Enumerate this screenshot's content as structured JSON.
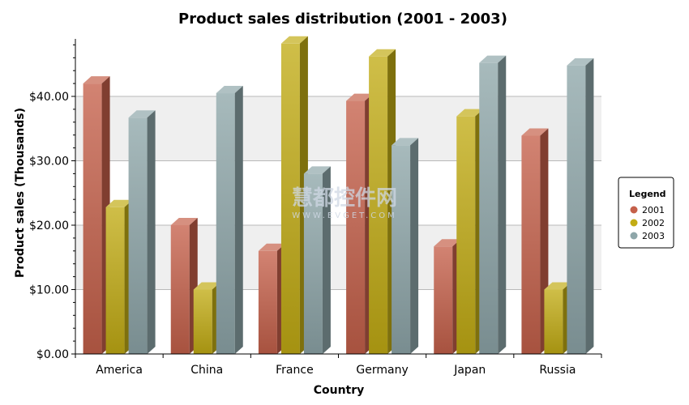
{
  "chart_data": {
    "type": "bar",
    "title": "Product sales distribution (2001 - 2003)",
    "xlabel": "Country",
    "ylabel": "Product sales (Thousands)",
    "categories": [
      "America",
      "China",
      "France",
      "Germany",
      "Japan",
      "Russia"
    ],
    "series": [
      {
        "name": "2001",
        "color": "#c5604a",
        "values": [
          42.0,
          20.0,
          16.0,
          39.3,
          16.7,
          33.9
        ]
      },
      {
        "name": "2002",
        "color": "#c2ac14",
        "values": [
          22.8,
          10.0,
          48.2,
          46.2,
          36.9,
          10.0
        ]
      },
      {
        "name": "2003",
        "color": "#8ea6a9",
        "values": [
          36.7,
          40.5,
          28.0,
          32.4,
          45.2,
          44.8
        ]
      }
    ],
    "ylim": [
      0,
      48
    ],
    "y_ticks": [
      0,
      10,
      20,
      30,
      40
    ],
    "y_tick_labels": [
      "$0.00",
      "$10.00",
      "$20.00",
      "$30.00",
      "$40.00"
    ],
    "grid": true,
    "legend_title": "Legend",
    "legend_position": "right",
    "style": "3d"
  },
  "watermark": {
    "text": "慧都控件网",
    "subtext": "WWW.EVGET.COM"
  }
}
